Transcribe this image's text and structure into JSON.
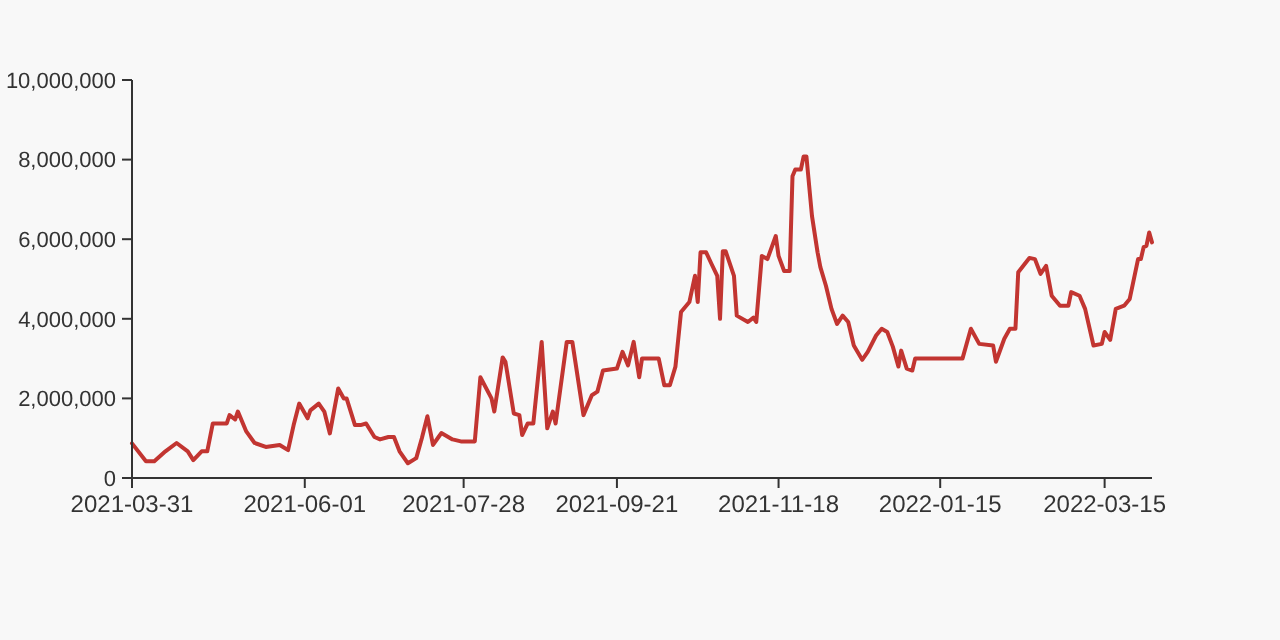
{
  "chart_data": {
    "type": "line",
    "xlim": [
      "2021-03-31",
      "2022-04-01"
    ],
    "ylim": [
      0,
      10000000
    ],
    "xticks": [
      "2021-03-31",
      "2021-06-01",
      "2021-07-28",
      "2021-09-21",
      "2021-11-18",
      "2022-01-15",
      "2022-03-15"
    ],
    "yticks": [
      {
        "value": 0,
        "label": "0"
      },
      {
        "value": 2000000,
        "label": "2,000,000"
      },
      {
        "value": 4000000,
        "label": "4,000,000"
      },
      {
        "value": 6000000,
        "label": "6,000,000"
      },
      {
        "value": 8000000,
        "label": "8,000,000"
      },
      {
        "value": 10000000,
        "label": "10,000,000"
      }
    ],
    "grid": false,
    "marker": "none",
    "line_style": "solid",
    "series": [
      {
        "color": "#c23531",
        "x": [
          "2021-03-31",
          "2021-04-05",
          "2021-04-08",
          "2021-04-12",
          "2021-04-16",
          "2021-04-20",
          "2021-04-22",
          "2021-04-25",
          "2021-04-27",
          "2021-04-29",
          "2021-05-04",
          "2021-05-05",
          "2021-05-07",
          "2021-05-08",
          "2021-05-11",
          "2021-05-14",
          "2021-05-18",
          "2021-05-23",
          "2021-05-26",
          "2021-05-28",
          "2021-05-30",
          "2021-06-02",
          "2021-06-03",
          "2021-06-06",
          "2021-06-08",
          "2021-06-10",
          "2021-06-13",
          "2021-06-15",
          "2021-06-16",
          "2021-06-19",
          "2021-06-21",
          "2021-06-23",
          "2021-06-26",
          "2021-06-28",
          "2021-07-01",
          "2021-07-03",
          "2021-07-05",
          "2021-07-08",
          "2021-07-11",
          "2021-07-13",
          "2021-07-15",
          "2021-07-17",
          "2021-07-19",
          "2021-07-20",
          "2021-07-24",
          "2021-07-27",
          "2021-08-01",
          "2021-08-03",
          "2021-08-07",
          "2021-08-08",
          "2021-08-11",
          "2021-08-12",
          "2021-08-15",
          "2021-08-17",
          "2021-08-18",
          "2021-08-20",
          "2021-08-22",
          "2021-08-25",
          "2021-08-27",
          "2021-08-29",
          "2021-08-30",
          "2021-09-03",
          "2021-09-05",
          "2021-09-09",
          "2021-09-12",
          "2021-09-14",
          "2021-09-16",
          "2021-09-21",
          "2021-09-23",
          "2021-09-25",
          "2021-09-27",
          "2021-09-29",
          "2021-09-30",
          "2021-10-06",
          "2021-10-08",
          "2021-10-10",
          "2021-10-12",
          "2021-10-14",
          "2021-10-17",
          "2021-10-19",
          "2021-10-20",
          "2021-10-21",
          "2021-10-23",
          "2021-10-25",
          "2021-10-27",
          "2021-10-28",
          "2021-10-29",
          "2021-10-30",
          "2021-11-02",
          "2021-11-03",
          "2021-11-07",
          "2021-11-09",
          "2021-11-10",
          "2021-11-12",
          "2021-11-14",
          "2021-11-17",
          "2021-11-18",
          "2021-11-20",
          "2021-11-22",
          "2021-11-23",
          "2021-11-24",
          "2021-11-26",
          "2021-11-27",
          "2021-11-28",
          "2021-11-30",
          "2021-12-02",
          "2021-12-03",
          "2021-12-05",
          "2021-12-07",
          "2021-12-09",
          "2021-12-11",
          "2021-12-13",
          "2021-12-15",
          "2021-12-18",
          "2021-12-20",
          "2021-12-23",
          "2021-12-25",
          "2021-12-27",
          "2021-12-29",
          "2021-12-31",
          "2022-01-01",
          "2022-01-03",
          "2022-01-05",
          "2022-01-06",
          "2022-01-16",
          "2022-01-23",
          "2022-01-26",
          "2022-01-29",
          "2022-02-03",
          "2022-02-04",
          "2022-02-07",
          "2022-02-09",
          "2022-02-11",
          "2022-02-12",
          "2022-02-16",
          "2022-02-18",
          "2022-02-20",
          "2022-02-22",
          "2022-02-24",
          "2022-02-27",
          "2022-03-02",
          "2022-03-03",
          "2022-03-06",
          "2022-03-08",
          "2022-03-11",
          "2022-03-14",
          "2022-03-15",
          "2022-03-17",
          "2022-03-19",
          "2022-03-22",
          "2022-03-24",
          "2022-03-27",
          "2022-03-28",
          "2022-03-29",
          "2022-03-30",
          "2022-03-31",
          "2022-04-01"
        ],
        "values": [
          870000,
          420000,
          420000,
          670000,
          880000,
          670000,
          450000,
          670000,
          670000,
          1370000,
          1370000,
          1580000,
          1470000,
          1670000,
          1170000,
          880000,
          780000,
          830000,
          700000,
          1330000,
          1870000,
          1500000,
          1700000,
          1870000,
          1670000,
          1120000,
          2250000,
          2000000,
          2000000,
          1330000,
          1330000,
          1370000,
          1030000,
          970000,
          1030000,
          1030000,
          670000,
          370000,
          500000,
          1000000,
          1550000,
          830000,
          1030000,
          1130000,
          970000,
          920000,
          920000,
          2530000,
          2000000,
          1670000,
          3030000,
          2920000,
          1620000,
          1580000,
          1080000,
          1370000,
          1370000,
          3420000,
          1250000,
          1670000,
          1370000,
          3420000,
          3420000,
          1580000,
          2080000,
          2170000,
          2700000,
          2750000,
          3170000,
          2830000,
          3420000,
          2530000,
          3000000,
          3000000,
          2330000,
          2330000,
          2800000,
          4170000,
          4420000,
          5080000,
          4420000,
          5670000,
          5670000,
          5370000,
          5080000,
          4000000,
          5700000,
          5700000,
          5080000,
          4080000,
          3920000,
          4030000,
          3920000,
          5580000,
          5500000,
          6080000,
          5580000,
          5200000,
          5200000,
          7580000,
          7750000,
          7750000,
          8080000,
          8080000,
          6580000,
          5670000,
          5300000,
          4830000,
          4250000,
          3870000,
          4080000,
          3920000,
          3330000,
          2970000,
          3170000,
          3580000,
          3750000,
          3670000,
          3300000,
          2800000,
          3200000,
          2750000,
          2700000,
          3000000,
          3000000,
          3000000,
          3750000,
          3370000,
          3330000,
          2920000,
          3500000,
          3750000,
          3750000,
          5170000,
          5530000,
          5500000,
          5130000,
          5330000,
          4580000,
          4330000,
          4330000,
          4670000,
          4580000,
          4250000,
          3330000,
          3370000,
          3670000,
          3470000,
          4250000,
          4330000,
          4500000,
          5500000,
          5500000,
          5800000,
          5830000,
          6170000,
          5920000
        ]
      }
    ]
  }
}
